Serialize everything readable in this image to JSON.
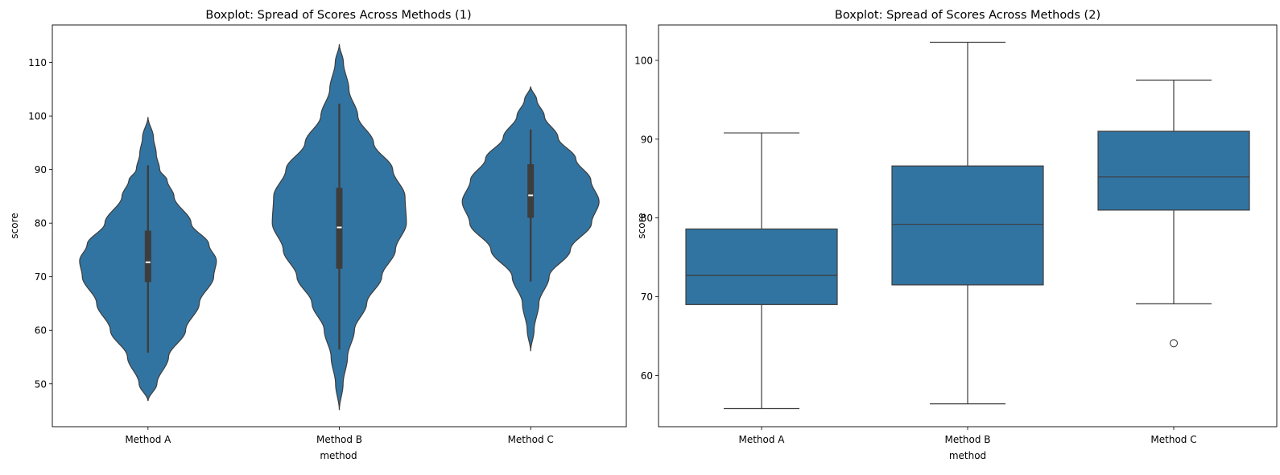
{
  "colors": {
    "body": "#3274a1",
    "edge": "#3d3d3d",
    "inner": "#3d3d3d",
    "median_mark": "#ffffff"
  },
  "chart_data": [
    {
      "type": "violin",
      "title": "Boxplot: Spread of Scores Across Methods (1)",
      "xlabel": "method",
      "ylabel": "score",
      "categories": [
        "Method A",
        "Method B",
        "Method C"
      ],
      "ylim": [
        42,
        117
      ],
      "yticks": [
        50,
        60,
        70,
        80,
        90,
        100,
        110
      ],
      "grid": false,
      "legend": "none",
      "stats": [
        {
          "min": 55.8,
          "q1": 69.0,
          "median": 72.7,
          "q3": 78.6,
          "max": 90.8
        },
        {
          "min": 56.4,
          "q1": 71.5,
          "median": 79.2,
          "q3": 86.6,
          "max": 102.3
        },
        {
          "min": 69.1,
          "q1": 81.0,
          "median": 85.2,
          "q3": 91.0,
          "max": 97.5
        }
      ],
      "density_range": [
        [
          46.8,
          99.8
        ],
        [
          45.1,
          113.4
        ],
        [
          56.1,
          105.5
        ]
      ],
      "density_profile": [
        [
          [
            46.8,
            0.0
          ],
          [
            50,
            0.13
          ],
          [
            55,
            0.3
          ],
          [
            60,
            0.55
          ],
          [
            65,
            0.75
          ],
          [
            70,
            0.96
          ],
          [
            73,
            1.0
          ],
          [
            76,
            0.89
          ],
          [
            80,
            0.63
          ],
          [
            85,
            0.38
          ],
          [
            88,
            0.28
          ],
          [
            90,
            0.17
          ],
          [
            93,
            0.12
          ],
          [
            96,
            0.08
          ],
          [
            99.8,
            0.0
          ]
        ],
        [
          [
            45.1,
            0.0
          ],
          [
            50,
            0.055
          ],
          [
            55,
            0.12
          ],
          [
            60,
            0.22
          ],
          [
            65,
            0.4
          ],
          [
            70,
            0.62
          ],
          [
            75,
            0.82
          ],
          [
            80,
            0.98
          ],
          [
            85,
            0.96
          ],
          [
            90,
            0.78
          ],
          [
            95,
            0.5
          ],
          [
            100,
            0.27
          ],
          [
            105,
            0.14
          ],
          [
            110,
            0.06
          ],
          [
            113.4,
            0.0
          ]
        ],
        [
          [
            56.1,
            0.0
          ],
          [
            60,
            0.05
          ],
          [
            65,
            0.12
          ],
          [
            70,
            0.27
          ],
          [
            75,
            0.58
          ],
          [
            80,
            0.89
          ],
          [
            84,
            1.0
          ],
          [
            88,
            0.88
          ],
          [
            92,
            0.66
          ],
          [
            96,
            0.4
          ],
          [
            100,
            0.2
          ],
          [
            103,
            0.09
          ],
          [
            105.5,
            0.0
          ]
        ]
      ]
    },
    {
      "type": "box",
      "title": "Boxplot: Spread of Scores Across Methods (2)",
      "xlabel": "method",
      "ylabel": "score",
      "categories": [
        "Method A",
        "Method B",
        "Method C"
      ],
      "ylim": [
        53.5,
        104.5
      ],
      "yticks": [
        60,
        70,
        80,
        90,
        100
      ],
      "grid": false,
      "legend": "none",
      "stats": [
        {
          "min": 55.8,
          "q1": 69.0,
          "median": 72.7,
          "q3": 78.6,
          "max": 90.8,
          "outliers": []
        },
        {
          "min": 56.4,
          "q1": 71.5,
          "median": 79.2,
          "q3": 86.6,
          "max": 102.3,
          "outliers": []
        },
        {
          "min": 69.1,
          "q1": 81.0,
          "median": 85.2,
          "q3": 91.0,
          "max": 97.5,
          "outliers": [
            64.1
          ]
        }
      ]
    }
  ]
}
